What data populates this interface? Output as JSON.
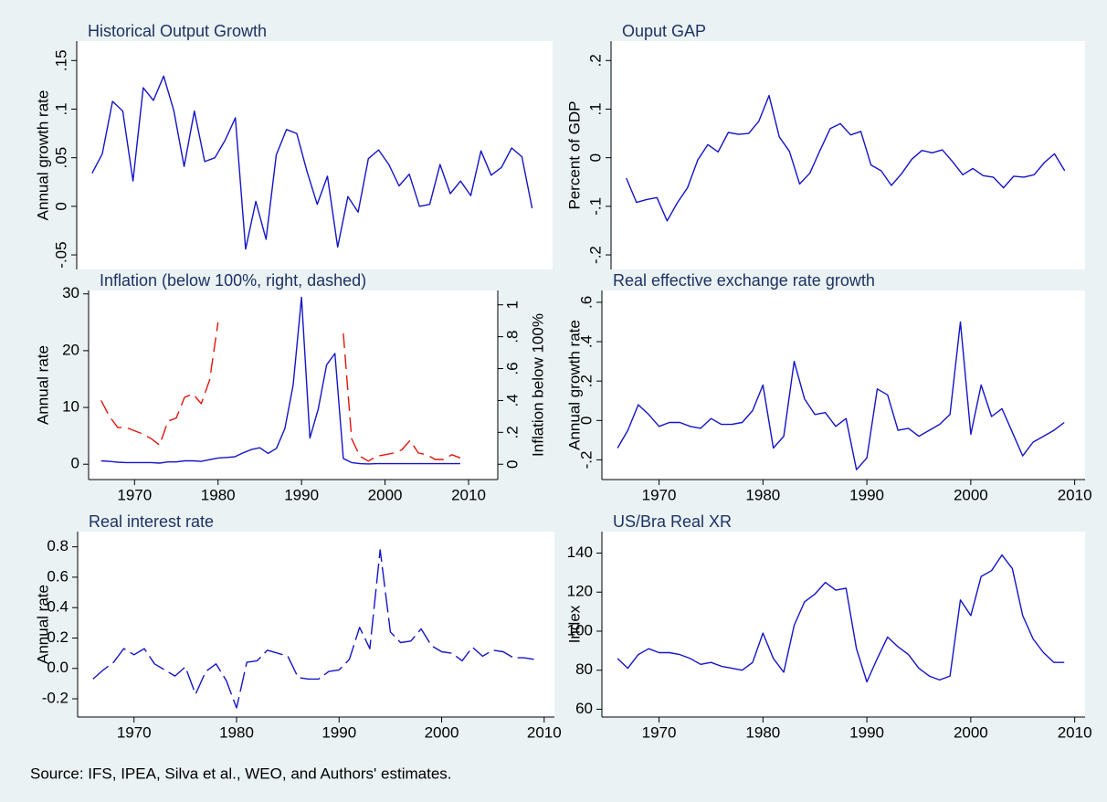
{
  "chart_data": [
    {
      "type": "line",
      "title": "Historical Output Growth",
      "ylabel": "Annual growth rate",
      "ytick_orientation": "vertical",
      "x": [
        1966,
        1967,
        1968,
        1969,
        1970,
        1971,
        1972,
        1973,
        1974,
        1975,
        1976,
        1977,
        1978,
        1979,
        1980,
        1981,
        1982,
        1983,
        1984,
        1985,
        1986,
        1987,
        1988,
        1989,
        1990,
        1991,
        1992,
        1993,
        1994,
        1995,
        1996,
        1997,
        1998,
        1999,
        2000,
        2001,
        2002,
        2003,
        2004,
        2005,
        2006,
        2007,
        2008,
        2009
      ],
      "xlim": [
        1964.5,
        2011
      ],
      "ylim": [
        -0.065,
        0.17
      ],
      "yticks": [
        {
          "value": -0.05,
          "label": "-.05"
        },
        0,
        {
          "value": 0.05,
          "label": ".05"
        },
        {
          "value": 0.1,
          "label": ".1"
        },
        {
          "value": 0.15,
          "label": ".15"
        }
      ],
      "series": [
        {
          "color": "#1414c8",
          "values": [
            0.034,
            0.054,
            0.108,
            0.098,
            0.026,
            0.122,
            0.109,
            0.134,
            0.098,
            0.041,
            0.098,
            0.046,
            0.05,
            0.068,
            0.091,
            -0.044,
            0.005,
            -0.034,
            0.053,
            0.079,
            0.075,
            0.036,
            0.002,
            0.031,
            -0.042,
            0.01,
            -0.006,
            0.049,
            0.058,
            0.043,
            0.021,
            0.033,
            0.0,
            0.002,
            0.043,
            0.013,
            0.026,
            0.011,
            0.057,
            0.032,
            0.04,
            0.06,
            0.051,
            -0.002
          ]
        }
      ]
    },
    {
      "type": "line",
      "title": "Ouput GAP",
      "ylabel": "Percent of GDP",
      "ytick_orientation": "vertical",
      "x": [
        1966,
        1967,
        1968,
        1969,
        1970,
        1971,
        1972,
        1973,
        1974,
        1975,
        1976,
        1977,
        1978,
        1979,
        1980,
        1981,
        1982,
        1983,
        1984,
        1985,
        1986,
        1987,
        1988,
        1989,
        1990,
        1991,
        1992,
        1993,
        1994,
        1995,
        1996,
        1997,
        1998,
        1999,
        2000,
        2001,
        2002,
        2003,
        2004,
        2005,
        2006,
        2007,
        2008,
        2009
      ],
      "xlim": [
        1964.5,
        2011
      ],
      "ylim": [
        -0.23,
        0.24
      ],
      "yticks": [
        {
          "value": -0.2,
          "label": "-.2"
        },
        {
          "value": -0.1,
          "label": "-.1"
        },
        0,
        {
          "value": 0.1,
          "label": ".1"
        },
        {
          "value": 0.2,
          "label": ".2"
        }
      ],
      "series": [
        {
          "color": "#1414c8",
          "values": [
            -0.042,
            -0.092,
            -0.086,
            -0.082,
            -0.13,
            -0.093,
            -0.062,
            -0.005,
            0.027,
            0.012,
            0.052,
            0.048,
            0.05,
            0.075,
            0.128,
            0.043,
            0.013,
            -0.054,
            -0.032,
            0.015,
            0.06,
            0.07,
            0.047,
            0.054,
            -0.015,
            -0.027,
            -0.057,
            -0.033,
            -0.003,
            0.015,
            0.01,
            0.016,
            -0.008,
            -0.035,
            -0.022,
            -0.037,
            -0.04,
            -0.062,
            -0.038,
            -0.04,
            -0.035,
            -0.01,
            0.008,
            -0.027
          ]
        }
      ]
    },
    {
      "type": "line",
      "title": "Inflation (below 100%, right, dashed)",
      "ylabel": "Annual rate",
      "y2label": "Inflation below 100%",
      "ytick_orientation": "horizontal",
      "x": [
        1966,
        1967,
        1968,
        1969,
        1970,
        1971,
        1972,
        1973,
        1974,
        1975,
        1976,
        1977,
        1978,
        1979,
        1980,
        1981,
        1982,
        1983,
        1984,
        1985,
        1986,
        1987,
        1988,
        1989,
        1990,
        1991,
        1992,
        1993,
        1994,
        1995,
        1996,
        1997,
        1998,
        1999,
        2000,
        2001,
        2002,
        2003,
        2004,
        2005,
        2006,
        2007,
        2008,
        2009
      ],
      "xlim": [
        1964.5,
        2013.5
      ],
      "xticks": [
        1970,
        1980,
        1990,
        2000,
        2010
      ],
      "ylim": [
        -2.7,
        30.6
      ],
      "yticks": [
        0,
        10,
        20,
        30
      ],
      "y2lim": [
        -0.096,
        1.09
      ],
      "y2ticks": [
        0,
        {
          "value": 0.2,
          "label": ".2"
        },
        {
          "value": 0.4,
          "label": ".4"
        },
        {
          "value": 0.6,
          "label": ".6"
        },
        {
          "value": 0.8,
          "label": ".8"
        },
        1
      ],
      "series": [
        {
          "color": "#1414c8",
          "values": [
            0.6,
            0.5,
            0.35,
            0.3,
            0.3,
            0.3,
            0.3,
            0.2,
            0.4,
            0.4,
            0.6,
            0.6,
            0.5,
            0.8,
            1.1,
            1.2,
            1.3,
            2.0,
            2.6,
            2.9,
            1.9,
            2.8,
            6.3,
            14.0,
            29.4,
            4.6,
            9.7,
            17.5,
            19.5,
            1.0,
            0.3,
            0.1,
            0.05,
            0.1,
            0.1,
            0.1,
            0.1,
            0.1,
            0.1,
            0.1,
            0.1,
            0.1,
            0.1,
            0.1
          ]
        },
        {
          "color": "#e0140a",
          "axis": "y2",
          "dashed": true,
          "values": [
            0.4,
            0.3,
            0.23,
            0.23,
            0.21,
            0.19,
            0.16,
            0.12,
            0.27,
            0.29,
            0.42,
            0.44,
            0.38,
            0.53,
            0.89,
            null,
            null,
            null,
            null,
            null,
            null,
            null,
            null,
            null,
            null,
            null,
            null,
            null,
            null,
            0.82,
            0.16,
            0.05,
            0.02,
            0.05,
            0.06,
            0.07,
            0.09,
            0.15,
            0.07,
            0.06,
            0.03,
            0.03,
            0.06,
            0.04
          ]
        }
      ]
    },
    {
      "type": "line",
      "title": "Real effective exchange rate growth",
      "ylabel": "Annual growth rate",
      "ytick_orientation": "vertical",
      "x": [
        1966,
        1967,
        1968,
        1969,
        1970,
        1971,
        1972,
        1973,
        1974,
        1975,
        1976,
        1977,
        1978,
        1979,
        1980,
        1981,
        1982,
        1983,
        1984,
        1985,
        1986,
        1987,
        1988,
        1989,
        1990,
        1991,
        1992,
        1993,
        1994,
        1995,
        1996,
        1997,
        1998,
        1999,
        2000,
        2001,
        2002,
        2003,
        2004,
        2005,
        2006,
        2007,
        2008,
        2009
      ],
      "xlim": [
        1964.5,
        2011
      ],
      "xticks": [
        1970,
        1980,
        1990,
        2000,
        2010
      ],
      "ylim": [
        -0.3,
        0.66
      ],
      "yticks": [
        {
          "value": -0.2,
          "label": "-.2"
        },
        0,
        {
          "value": 0.2,
          "label": ".2"
        },
        {
          "value": 0.4,
          "label": ".4"
        },
        {
          "value": 0.6,
          "label": ".6"
        }
      ],
      "series": [
        {
          "color": "#1414c8",
          "values": [
            -0.14,
            -0.05,
            0.08,
            0.03,
            -0.03,
            -0.01,
            -0.01,
            -0.03,
            -0.04,
            0.01,
            -0.02,
            -0.02,
            -0.01,
            0.05,
            0.18,
            -0.14,
            -0.08,
            0.3,
            0.11,
            0.03,
            0.04,
            -0.03,
            0.01,
            -0.25,
            -0.19,
            0.16,
            0.13,
            -0.05,
            -0.04,
            -0.08,
            -0.05,
            -0.02,
            0.03,
            0.5,
            -0.07,
            0.18,
            0.02,
            0.06,
            -0.06,
            -0.18,
            -0.11,
            -0.08,
            -0.05,
            -0.01
          ]
        }
      ]
    },
    {
      "type": "line",
      "title": "Real interest rate",
      "ylabel": "Annual rate",
      "ytick_orientation": "horizontal",
      "x": [
        1966,
        1967,
        1968,
        1969,
        1970,
        1971,
        1972,
        1973,
        1974,
        1975,
        1976,
        1977,
        1978,
        1979,
        1980,
        1981,
        1982,
        1983,
        1984,
        1985,
        1986,
        1987,
        1988,
        1989,
        1990,
        1991,
        1992,
        1993,
        1994,
        1995,
        1996,
        1997,
        1998,
        1999,
        2000,
        2001,
        2002,
        2003,
        2004,
        2005,
        2006,
        2007,
        2008,
        2009
      ],
      "xlim": [
        1964.5,
        2011
      ],
      "xticks": [
        1970,
        1980,
        1990,
        2000,
        2010
      ],
      "ylim": [
        -0.32,
        0.9
      ],
      "yticks": [
        -0.2,
        {
          "value": 0,
          "label": "0.0"
        },
        0.2,
        0.4,
        0.6,
        0.8
      ],
      "series": [
        {
          "color": "#1414c8",
          "dashed": true,
          "values": [
            -0.07,
            -0.01,
            0.04,
            0.13,
            0.09,
            0.13,
            0.03,
            -0.01,
            -0.05,
            0.01,
            -0.17,
            -0.02,
            0.03,
            -0.08,
            -0.26,
            0.04,
            0.05,
            0.12,
            0.1,
            0.08,
            -0.06,
            -0.07,
            -0.07,
            -0.02,
            -0.01,
            0.06,
            0.27,
            0.13,
            0.78,
            0.24,
            0.17,
            0.18,
            0.26,
            0.15,
            0.11,
            0.1,
            0.05,
            0.14,
            0.08,
            0.12,
            0.11,
            0.07,
            0.07,
            0.06
          ]
        }
      ]
    },
    {
      "type": "line",
      "title": "US/Bra Real XR",
      "ylabel": "Index",
      "ytick_orientation": "horizontal",
      "x": [
        1966,
        1967,
        1968,
        1969,
        1970,
        1971,
        1972,
        1973,
        1974,
        1975,
        1976,
        1977,
        1978,
        1979,
        1980,
        1981,
        1982,
        1983,
        1984,
        1985,
        1986,
        1987,
        1988,
        1989,
        1990,
        1991,
        1992,
        1993,
        1994,
        1995,
        1996,
        1997,
        1998,
        1999,
        2000,
        2001,
        2002,
        2003,
        2004,
        2005,
        2006,
        2007,
        2008,
        2009
      ],
      "xlim": [
        1964.5,
        2011
      ],
      "xticks": [
        1970,
        1980,
        1990,
        2000,
        2010
      ],
      "ylim": [
        56,
        151
      ],
      "yticks": [
        60,
        80,
        100,
        120,
        140
      ],
      "series": [
        {
          "color": "#1414c8",
          "values": [
            86,
            81,
            88,
            91,
            89,
            89,
            88,
            86,
            83,
            84,
            82,
            81,
            80,
            84,
            99,
            86,
            79,
            103,
            115,
            119,
            125,
            121,
            122,
            91,
            74,
            86,
            97,
            92,
            88,
            81,
            77,
            75,
            77,
            116,
            108,
            128,
            131,
            139,
            132,
            108,
            96,
            89,
            84,
            84
          ]
        }
      ]
    }
  ],
  "note": "Source: IFS, IPEA, Silva et al., WEO, and Authors' estimates."
}
